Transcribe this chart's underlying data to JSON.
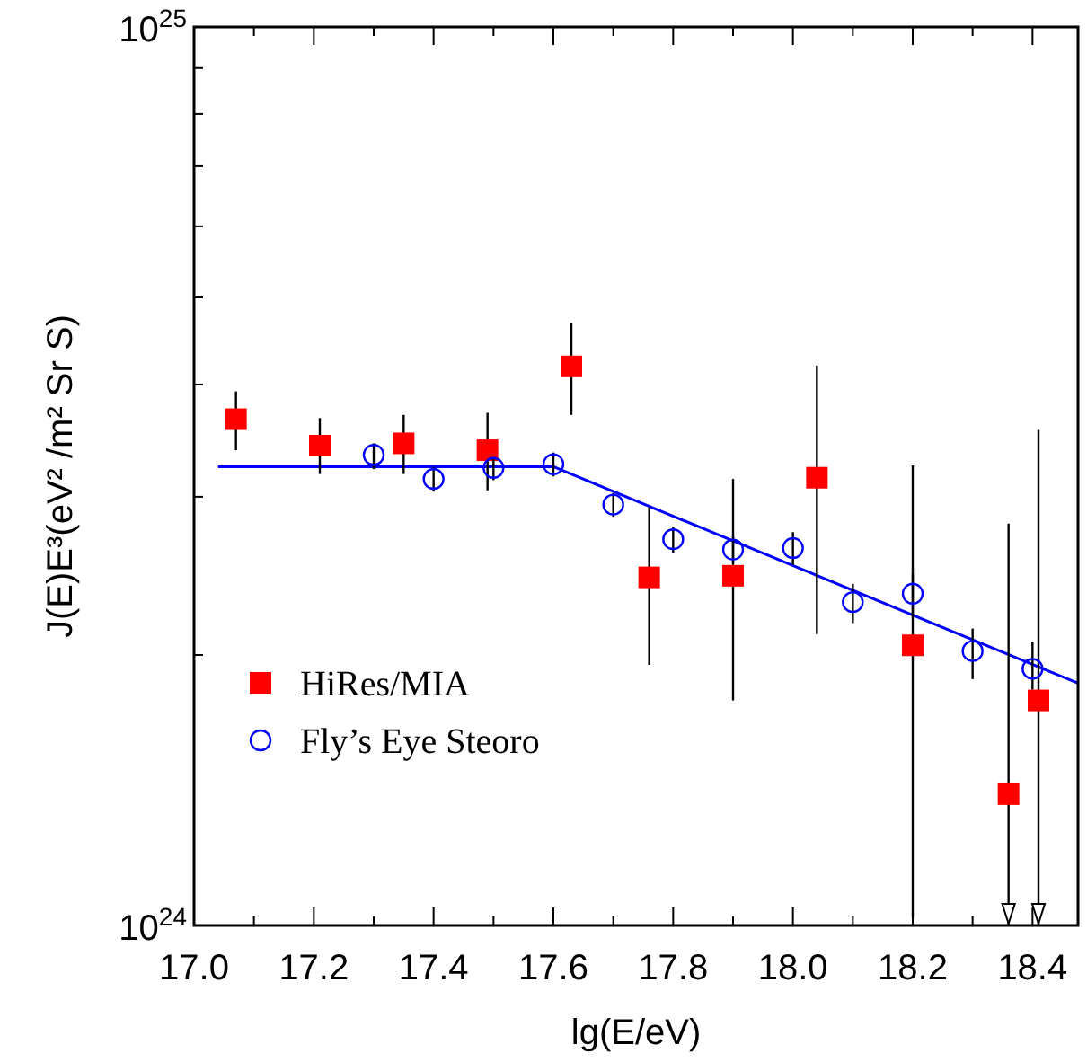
{
  "chart_data": {
    "type": "scatter",
    "xlabel": "lg(E/eV)",
    "ylabel": "J(E)E³(eV² /m² Sr S)",
    "log": "y",
    "legend": "left",
    "xlim": [
      17.0,
      18.476
    ],
    "ylim": [
      1e+24,
      1e+25
    ],
    "xticks": [
      {
        "value": 17.0,
        "label": "17.0"
      },
      {
        "value": 17.1,
        "label": null
      },
      {
        "value": 17.2,
        "label": "17.2"
      },
      {
        "value": 17.3,
        "label": null
      },
      {
        "value": 17.4,
        "label": "17.4"
      },
      {
        "value": 17.5,
        "label": null
      },
      {
        "value": 17.6,
        "label": "17.6"
      },
      {
        "value": 17.7,
        "label": null
      },
      {
        "value": 17.8,
        "label": "17.8"
      },
      {
        "value": 17.9,
        "label": null
      },
      {
        "value": 18.0,
        "label": "18.0"
      },
      {
        "value": 18.1,
        "label": null
      },
      {
        "value": 18.2,
        "label": "18.2"
      },
      {
        "value": 18.3,
        "label": null
      },
      {
        "value": 18.4,
        "label": "18.4"
      }
    ],
    "yticks": [
      {
        "value": 1e+24,
        "label": "10$^{24}$"
      },
      {
        "value": 2e+24,
        "label": null
      },
      {
        "value": 3e+24,
        "label": null
      },
      {
        "value": 4e+24,
        "label": null
      },
      {
        "value": 5e+24,
        "label": null
      },
      {
        "value": 6e+24,
        "label": null
      },
      {
        "value": 7e+24,
        "label": null
      },
      {
        "value": 8e+24,
        "label": null
      },
      {
        "value": 9e+24,
        "label": null
      },
      {
        "value": 1e+25,
        "label": "10$^{25}$"
      }
    ],
    "series": [
      {
        "type": "line",
        "x": [
          17.04,
          17.6,
          18.476
        ],
        "values": [
          3.24e+24,
          3.24e+24,
          1.86e+24
        ],
        "color": "#0000ff",
        "line_style": "solid"
      },
      {
        "name": "HiRes/MIA",
        "marker": "square",
        "color": "#ff0000",
        "x": [
          17.07,
          17.21,
          17.35,
          17.49,
          17.63,
          17.76,
          17.9,
          18.04,
          18.2,
          18.36,
          18.41
        ],
        "values": [
          3.66e+24,
          3.42e+24,
          3.44e+24,
          3.38e+24,
          4.19e+24,
          2.44e+24,
          2.45e+24,
          3.15e+24,
          2.05e+24,
          1.4e+24,
          1.78e+24
        ],
        "errors": [
          [
            3.38e+24,
            3.93e+24
          ],
          [
            3.18e+24,
            3.67e+24
          ],
          [
            3.18e+24,
            3.7e+24
          ],
          [
            3.05e+24,
            3.72e+24
          ],
          [
            3.7e+24,
            4.68e+24
          ],
          [
            1.95e+24,
            2.92e+24
          ],
          [
            1.78e+24,
            3.14e+24
          ],
          [
            2.11e+24,
            4.2e+24
          ],
          [
            1.02e+24,
            3.25e+24
          ],
          [
            1e+24,
            2.8e+24
          ],
          [
            1e+24,
            3.56e+24
          ]
        ]
      },
      {
        "name": "Fly’s Eye Steoro",
        "marker": "circle",
        "color": "#0000ff",
        "x": [
          17.3,
          17.4,
          17.5,
          17.6,
          17.7,
          17.8,
          17.9,
          18.0,
          18.1,
          18.2,
          18.3,
          18.4
        ],
        "values": [
          3.34e+24,
          3.14e+24,
          3.23e+24,
          3.26e+24,
          2.94e+24,
          2.69e+24,
          2.62e+24,
          2.63e+24,
          2.29e+24,
          2.34e+24,
          2.02e+24,
          1.93e+24
        ],
        "errors": [
          [
            3.22e+24,
            3.44e+24
          ],
          [
            3.04e+24,
            3.24e+24
          ],
          [
            3.13e+24,
            3.32e+24
          ],
          [
            3.16e+24,
            3.36e+24
          ],
          [
            2.85e+24,
            3.03e+24
          ],
          [
            2.6e+24,
            2.78e+24
          ],
          [
            2.53e+24,
            2.71e+24
          ],
          [
            2.52e+24,
            2.74e+24
          ],
          [
            2.17e+24,
            2.4e+24
          ],
          [
            2.21e+24,
            2.46e+24
          ],
          [
            1.88e+24,
            2.14e+24
          ],
          [
            1.83e+24,
            2.07e+24
          ]
        ]
      }
    ]
  }
}
